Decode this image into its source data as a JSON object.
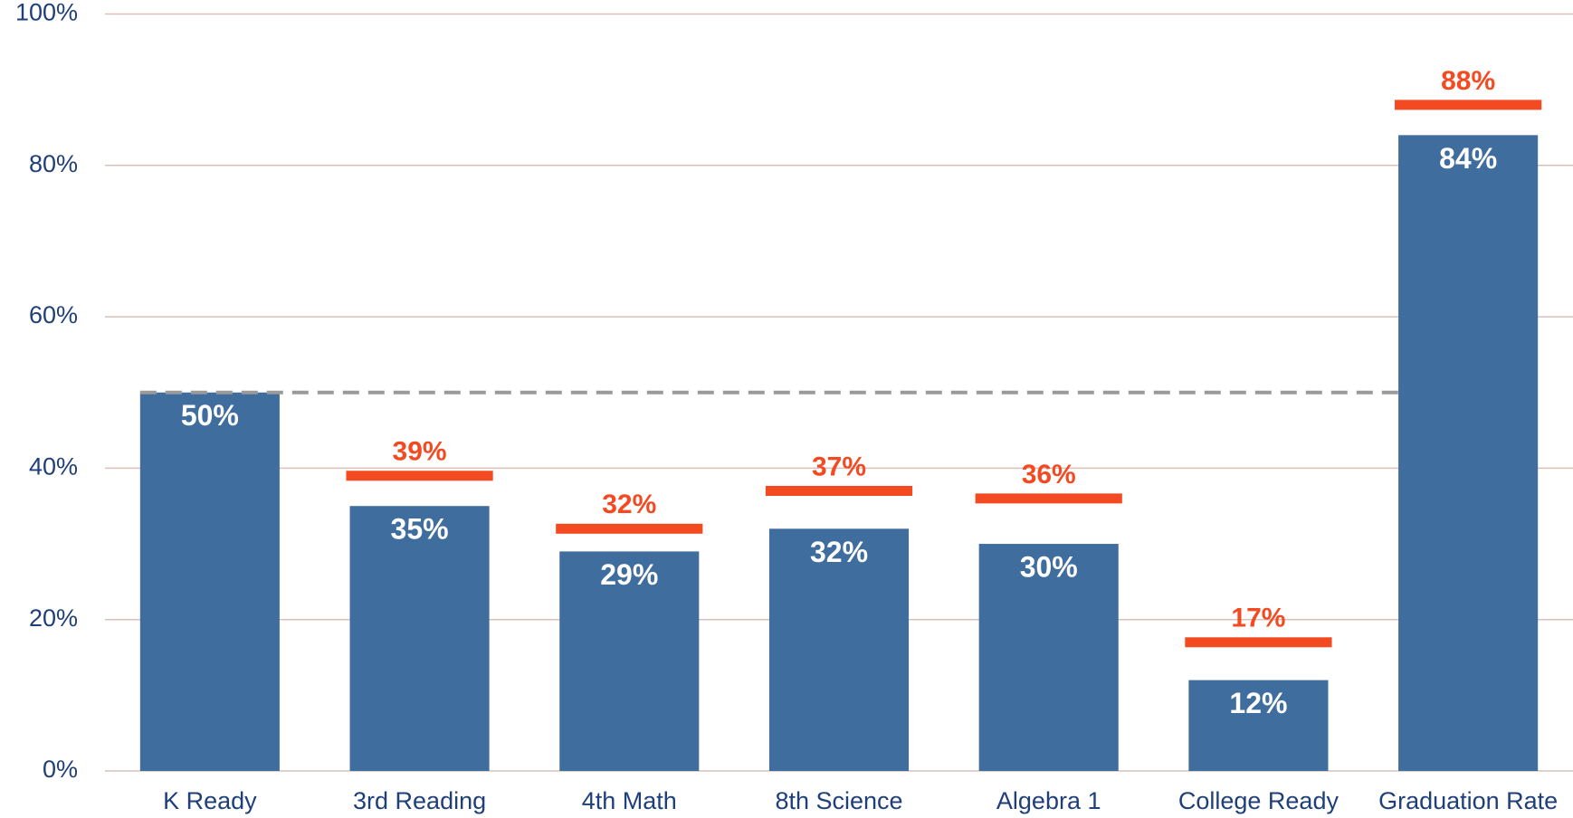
{
  "chart_data": {
    "type": "bar",
    "categories": [
      "K Ready",
      "3rd Reading",
      "4th Math",
      "8th Science",
      "Algebra 1",
      "College Ready",
      "Graduation Rate"
    ],
    "values": [
      50,
      35,
      29,
      32,
      30,
      12,
      84
    ],
    "value_labels": [
      "50%",
      "35%",
      "29%",
      "32%",
      "30%",
      "12%",
      "84%"
    ],
    "targets": [
      null,
      39,
      32,
      37,
      36,
      17,
      88
    ],
    "target_labels": [
      null,
      "39%",
      "32%",
      "37%",
      "36%",
      "17%",
      "88%"
    ],
    "reference_line": 50,
    "color": "#3f6d9e",
    "target_color": "#f34a22",
    "reference_color": "#9a9a9a",
    "ylim": [
      0,
      100
    ],
    "yticks": [
      {
        "value": 0,
        "label": "0%"
      },
      {
        "value": 20,
        "label": "20%"
      },
      {
        "value": 40,
        "label": "40%"
      },
      {
        "value": 60,
        "label": "60%"
      },
      {
        "value": 80,
        "label": "80%"
      },
      {
        "value": 100,
        "label": "100%"
      }
    ],
    "grid": true
  }
}
